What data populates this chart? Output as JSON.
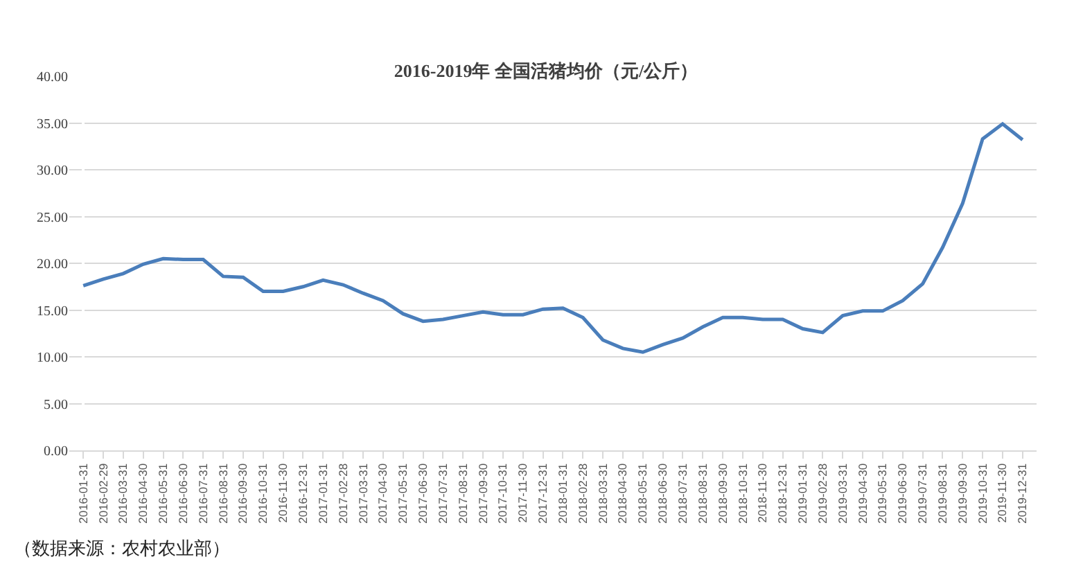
{
  "chart_data": {
    "type": "line",
    "title": "2016-2019年 全国活猪均价（元/公斤）",
    "categories": [
      "2016-01-31",
      "2016-02-29",
      "2016-03-31",
      "2016-04-30",
      "2016-05-31",
      "2016-06-30",
      "2016-07-31",
      "2016-08-31",
      "2016-09-30",
      "2016-10-31",
      "2016-11-30",
      "2016-12-31",
      "2017-01-31",
      "2017-02-28",
      "2017-03-31",
      "2017-04-30",
      "2017-05-31",
      "2017-06-30",
      "2017-07-31",
      "2017-08-31",
      "2017-09-30",
      "2017-10-31",
      "2017-11-30",
      "2017-12-31",
      "2018-01-31",
      "2018-02-28",
      "2018-03-31",
      "2018-04-30",
      "2018-05-31",
      "2018-06-30",
      "2018-07-31",
      "2018-08-31",
      "2018-09-30",
      "2018-10-31",
      "2018-11-30",
      "2018-12-31",
      "2019-01-31",
      "2019-02-28",
      "2019-03-31",
      "2019-04-30",
      "2019-05-31",
      "2019-06-30",
      "2019-07-31",
      "2019-08-31",
      "2019-09-30",
      "2019-10-31",
      "2019-11-30",
      "2019-12-31"
    ],
    "series": [
      {
        "color": "#4a7ebb",
        "values": [
          17.6,
          18.3,
          18.9,
          19.9,
          20.5,
          20.4,
          20.4,
          18.6,
          18.5,
          17.0,
          17.0,
          17.5,
          18.2,
          17.7,
          16.8,
          16.0,
          14.6,
          13.8,
          14.0,
          14.4,
          14.8,
          14.5,
          14.5,
          15.1,
          15.2,
          14.2,
          11.8,
          10.9,
          10.5,
          11.3,
          12.0,
          13.2,
          14.2,
          14.2,
          14.0,
          14.0,
          13.0,
          12.6,
          14.4,
          14.9,
          14.9,
          16.0,
          17.8,
          21.7,
          26.4,
          33.3,
          34.9,
          33.2
        ]
      }
    ],
    "ylim": [
      0,
      40
    ],
    "yticks": [
      {
        "value": 0,
        "label": "0.00"
      },
      {
        "value": 5,
        "label": "5.00"
      },
      {
        "value": 10,
        "label": "10.00"
      },
      {
        "value": 15,
        "label": "15.00"
      },
      {
        "value": 20,
        "label": "20.00"
      },
      {
        "value": 25,
        "label": "25.00"
      },
      {
        "value": 30,
        "label": "30.00"
      },
      {
        "value": 35,
        "label": "35.00"
      },
      {
        "value": 40,
        "label": "40.00"
      }
    ],
    "grid": "y",
    "legend": false,
    "marker": "none",
    "line_style": "solid",
    "annotations": [
      "（数据来源：农村农业部）"
    ]
  }
}
